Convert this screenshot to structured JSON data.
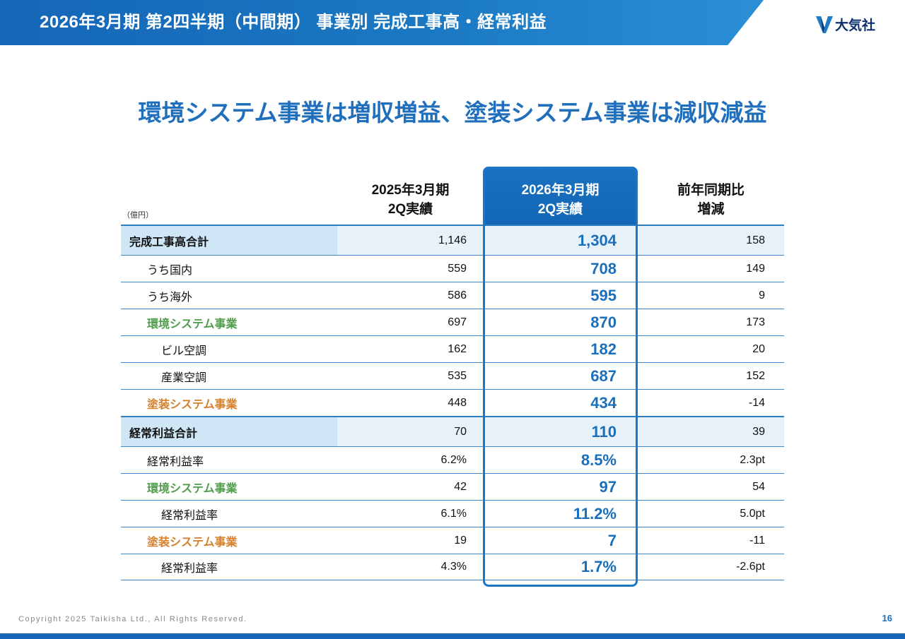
{
  "header": {
    "title": "2026年3月期 第2四半期（中間期） 事業別 完成工事高・経常利益",
    "logo_text": "大気社"
  },
  "headline": "環境システム事業は増収増益、塗装システム事業は減収減益",
  "table": {
    "unit": "（億円）",
    "col1": [
      "2025年3月期",
      "2Q実績"
    ],
    "col2": [
      "2026年3月期",
      "2Q実績"
    ],
    "col3": [
      "前年同期比",
      "増減"
    ],
    "rows": [
      {
        "label": "完成工事高合計",
        "prev": "1,146",
        "curr": "1,304",
        "diff": "158"
      },
      {
        "label": "うち国内",
        "prev": "559",
        "curr": "708",
        "diff": "149"
      },
      {
        "label": "うち海外",
        "prev": "586",
        "curr": "595",
        "diff": "9"
      },
      {
        "label": "環境システム事業",
        "prev": "697",
        "curr": "870",
        "diff": "173"
      },
      {
        "label": "ビル空調",
        "prev": "162",
        "curr": "182",
        "diff": "20"
      },
      {
        "label": "産業空調",
        "prev": "535",
        "curr": "687",
        "diff": "152"
      },
      {
        "label": "塗装システム事業",
        "prev": "448",
        "curr": "434",
        "diff": "-14"
      },
      {
        "label": "経常利益合計",
        "prev": "70",
        "curr": "110",
        "diff": "39"
      },
      {
        "label": "経常利益率",
        "prev": "6.2%",
        "curr": "8.5%",
        "diff": "2.3pt"
      },
      {
        "label": "環境システム事業",
        "prev": "42",
        "curr": "97",
        "diff": "54"
      },
      {
        "label": "経常利益率",
        "prev": "6.1%",
        "curr": "11.2%",
        "diff": "5.0pt"
      },
      {
        "label": "塗装システム事業",
        "prev": "19",
        "curr": "7",
        "diff": "-11"
      },
      {
        "label": "経常利益率",
        "prev": "4.3%",
        "curr": "1.7%",
        "diff": "-2.6pt"
      }
    ]
  },
  "footer": {
    "copyright": "Copyright  2025 Taikisha Ltd., All Rights Reserved.",
    "page": "16"
  },
  "colors": {
    "brand_blue": "#1a6fbd",
    "environment_green": "#4f9c4c",
    "painting_orange": "#d5802a"
  }
}
